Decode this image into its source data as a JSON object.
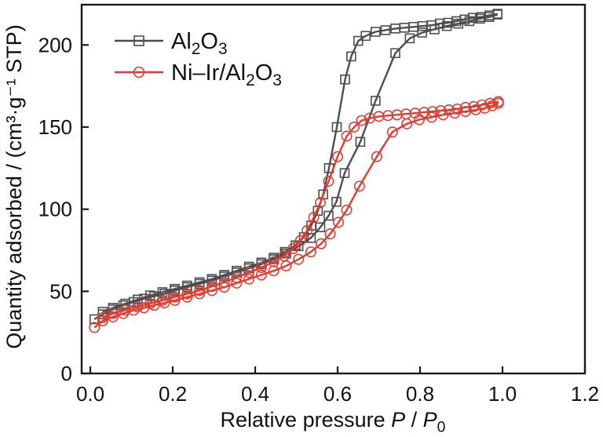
{
  "figure": {
    "background": "#ffffff",
    "axis_color": "#1b1b1b",
    "text_color": "#111111"
  },
  "chart_data": {
    "type": "line",
    "title": "",
    "xlabel": "Relative pressure P / P0",
    "ylabel": "Quantity adsorbed / (cm³·g⁻¹ STP)",
    "xlabel_parts": [
      {
        "t": "Relative pressure "
      },
      {
        "t": "P",
        "italic": true
      },
      {
        "t": " / "
      },
      {
        "t": "P",
        "italic": true
      },
      {
        "t": "0",
        "sub": true
      }
    ],
    "x_range": [
      -0.021,
      1.2
    ],
    "y_range": [
      0,
      224.5
    ],
    "x_ticks": [
      0.0,
      0.2,
      0.4,
      0.6,
      0.8,
      1.0,
      1.2
    ],
    "x_tick_labels": [
      "0.0",
      "0.2",
      "0.4",
      "0.6",
      "0.8",
      "1.0",
      "1.2"
    ],
    "y_ticks": [
      0,
      50,
      100,
      150,
      200
    ],
    "y_tick_labels": [
      "0",
      "50",
      "100",
      "150",
      "200"
    ],
    "grid": false,
    "legend_position": "upper-left-inside",
    "legend": [
      {
        "name": "Al2O3",
        "color": "#4e4e50",
        "marker": "square",
        "label_parts": [
          {
            "t": "Al"
          },
          {
            "t": "2",
            "sub": true
          },
          {
            "t": "O"
          },
          {
            "t": "3",
            "sub": true
          }
        ]
      },
      {
        "name": "Ni-Ir/Al2O3",
        "color": "#e63a2e",
        "marker": "circle",
        "label_parts": [
          {
            "t": "Ni–Ir/Al"
          },
          {
            "t": "2",
            "sub": true
          },
          {
            "t": "O"
          },
          {
            "t": "3",
            "sub": true
          }
        ]
      }
    ],
    "series": [
      {
        "name": "Al2O3 adsorption",
        "group": "Al2O3",
        "branch": "adsorption",
        "color": "#4e4e50",
        "marker": "square",
        "points": [
          [
            0.01,
            33
          ],
          [
            0.03,
            36
          ],
          [
            0.055,
            39
          ],
          [
            0.08,
            41.5
          ],
          [
            0.105,
            43.5
          ],
          [
            0.13,
            45.5
          ],
          [
            0.155,
            47
          ],
          [
            0.18,
            48.5
          ],
          [
            0.205,
            50.5
          ],
          [
            0.235,
            52.5
          ],
          [
            0.265,
            54.5
          ],
          [
            0.295,
            56.5
          ],
          [
            0.325,
            59
          ],
          [
            0.355,
            61.5
          ],
          [
            0.385,
            64
          ],
          [
            0.415,
            66.5
          ],
          [
            0.445,
            69.5
          ],
          [
            0.475,
            73
          ],
          [
            0.505,
            77.5
          ],
          [
            0.535,
            82.5
          ],
          [
            0.558,
            89
          ],
          [
            0.578,
            96
          ],
          [
            0.597,
            104.5
          ],
          [
            0.617,
            122
          ],
          [
            0.655,
            141
          ],
          [
            0.692,
            166
          ],
          [
            0.74,
            195
          ],
          [
            0.775,
            204
          ],
          [
            0.805,
            207.5
          ],
          [
            0.835,
            209.5
          ],
          [
            0.865,
            211.5
          ],
          [
            0.893,
            213
          ],
          [
            0.92,
            214.5
          ],
          [
            0.945,
            216
          ],
          [
            0.968,
            217
          ],
          [
            0.988,
            218.5
          ]
        ]
      },
      {
        "name": "Al2O3 desorption",
        "group": "Al2O3",
        "branch": "desorption",
        "color": "#4e4e50",
        "marker": "square",
        "points": [
          [
            0.988,
            219
          ],
          [
            0.968,
            218
          ],
          [
            0.948,
            217
          ],
          [
            0.928,
            216.5
          ],
          [
            0.908,
            215.5
          ],
          [
            0.888,
            214.5
          ],
          [
            0.868,
            213.5
          ],
          [
            0.848,
            213
          ],
          [
            0.828,
            212
          ],
          [
            0.806,
            211.5
          ],
          [
            0.784,
            211
          ],
          [
            0.762,
            210.5
          ],
          [
            0.74,
            210
          ],
          [
            0.716,
            209
          ],
          [
            0.692,
            208
          ],
          [
            0.668,
            205.5
          ],
          [
            0.65,
            202.5
          ],
          [
            0.633,
            193
          ],
          [
            0.618,
            179
          ],
          [
            0.598,
            150
          ],
          [
            0.579,
            125
          ],
          [
            0.565,
            109
          ],
          [
            0.552,
            99
          ],
          [
            0.536,
            90
          ],
          [
            0.518,
            83
          ],
          [
            0.498,
            78
          ],
          [
            0.472,
            74
          ],
          [
            0.445,
            70.5
          ],
          [
            0.415,
            67.5
          ],
          [
            0.385,
            65
          ],
          [
            0.355,
            62.5
          ],
          [
            0.325,
            60
          ],
          [
            0.295,
            57.5
          ],
          [
            0.265,
            55.5
          ],
          [
            0.235,
            53.5
          ],
          [
            0.205,
            51.5
          ],
          [
            0.175,
            49.5
          ],
          [
            0.145,
            47.5
          ],
          [
            0.115,
            45
          ],
          [
            0.085,
            42.5
          ],
          [
            0.055,
            40
          ],
          [
            0.03,
            37.5
          ]
        ]
      },
      {
        "name": "Ni-Ir/Al2O3 adsorption",
        "group": "Ni-Ir/Al2O3",
        "branch": "adsorption",
        "color": "#e63a2e",
        "marker": "circle",
        "points": [
          [
            0.01,
            28
          ],
          [
            0.03,
            32
          ],
          [
            0.055,
            34.5
          ],
          [
            0.08,
            36.5
          ],
          [
            0.105,
            38.5
          ],
          [
            0.13,
            40
          ],
          [
            0.155,
            41.5
          ],
          [
            0.18,
            43
          ],
          [
            0.205,
            44.5
          ],
          [
            0.235,
            46.5
          ],
          [
            0.265,
            48.5
          ],
          [
            0.295,
            50.5
          ],
          [
            0.325,
            52.5
          ],
          [
            0.355,
            55
          ],
          [
            0.385,
            57.5
          ],
          [
            0.415,
            60
          ],
          [
            0.445,
            62.5
          ],
          [
            0.475,
            65.5
          ],
          [
            0.505,
            69.5
          ],
          [
            0.535,
            74
          ],
          [
            0.56,
            79
          ],
          [
            0.582,
            85
          ],
          [
            0.602,
            92
          ],
          [
            0.622,
            99.5
          ],
          [
            0.653,
            114
          ],
          [
            0.695,
            132
          ],
          [
            0.733,
            147
          ],
          [
            0.768,
            152
          ],
          [
            0.798,
            154.5
          ],
          [
            0.828,
            156
          ],
          [
            0.856,
            157.5
          ],
          [
            0.884,
            158.5
          ],
          [
            0.91,
            159.5
          ],
          [
            0.935,
            160.5
          ],
          [
            0.957,
            161.5
          ],
          [
            0.975,
            163
          ],
          [
            0.99,
            164.5
          ]
        ]
      },
      {
        "name": "Ni-Ir/Al2O3 desorption",
        "group": "Ni-Ir/Al2O3",
        "branch": "desorption",
        "color": "#e63a2e",
        "marker": "circle",
        "points": [
          [
            0.99,
            165.5
          ],
          [
            0.97,
            164.5
          ],
          [
            0.95,
            163.5
          ],
          [
            0.93,
            162.5
          ],
          [
            0.91,
            162
          ],
          [
            0.89,
            161
          ],
          [
            0.87,
            160.5
          ],
          [
            0.85,
            160
          ],
          [
            0.83,
            159.5
          ],
          [
            0.81,
            159
          ],
          [
            0.788,
            158.5
          ],
          [
            0.766,
            158
          ],
          [
            0.744,
            157.5
          ],
          [
            0.722,
            157
          ],
          [
            0.7,
            156.5
          ],
          [
            0.678,
            155.5
          ],
          [
            0.658,
            154
          ],
          [
            0.64,
            150
          ],
          [
            0.622,
            144.5
          ],
          [
            0.6,
            132
          ],
          [
            0.578,
            117
          ],
          [
            0.558,
            104
          ],
          [
            0.542,
            95
          ],
          [
            0.526,
            87
          ],
          [
            0.51,
            81
          ],
          [
            0.492,
            76
          ],
          [
            0.47,
            71.5
          ],
          [
            0.445,
            68
          ],
          [
            0.415,
            64.5
          ],
          [
            0.385,
            61.5
          ],
          [
            0.355,
            58.5
          ],
          [
            0.325,
            55.5
          ],
          [
            0.295,
            53
          ],
          [
            0.265,
            50.5
          ],
          [
            0.235,
            48.5
          ],
          [
            0.205,
            46.5
          ],
          [
            0.175,
            44.5
          ],
          [
            0.145,
            42.5
          ],
          [
            0.115,
            40.5
          ],
          [
            0.085,
            38.5
          ],
          [
            0.055,
            36.5
          ],
          [
            0.03,
            34
          ]
        ]
      }
    ]
  }
}
